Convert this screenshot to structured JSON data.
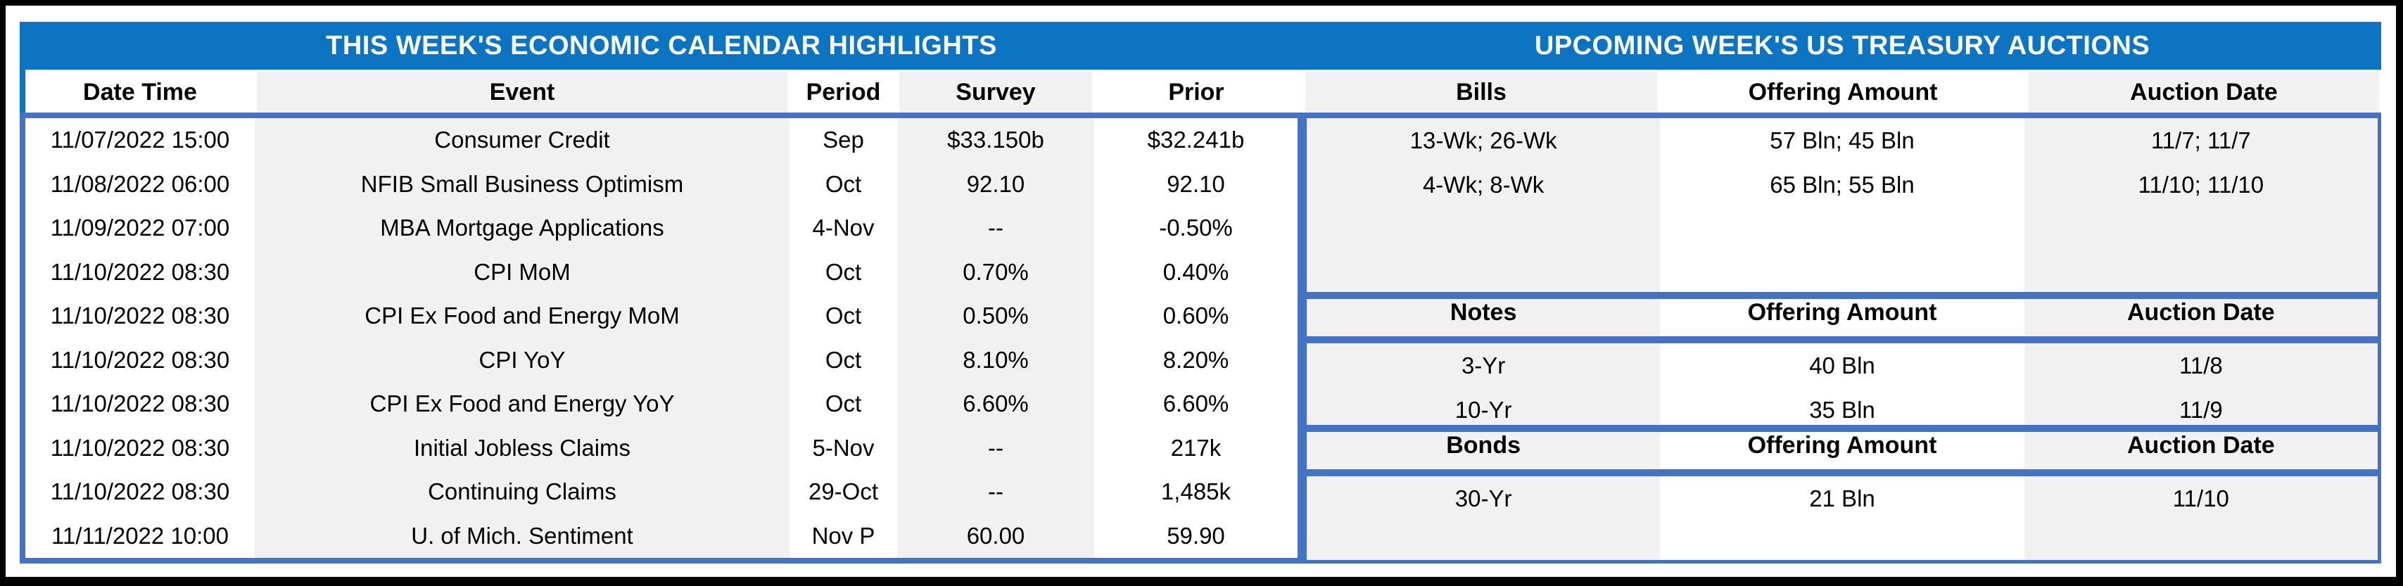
{
  "left_table": {
    "title": "THIS WEEK'S ECONOMIC CALENDAR HIGHLIGHTS",
    "columns": [
      "Date Time",
      "Event",
      "Period",
      "Survey",
      "Prior"
    ],
    "rows": [
      [
        "11/07/2022 15:00",
        "Consumer Credit",
        "Sep",
        "$33.150b",
        "$32.241b"
      ],
      [
        "11/08/2022 06:00",
        "NFIB Small Business Optimism",
        "Oct",
        "92.10",
        "92.10"
      ],
      [
        "11/09/2022 07:00",
        "MBA Mortgage Applications",
        "4-Nov",
        "--",
        "-0.50%"
      ],
      [
        "11/10/2022 08:30",
        "CPI MoM",
        "Oct",
        "0.70%",
        "0.40%"
      ],
      [
        "11/10/2022 08:30",
        "CPI Ex Food and Energy MoM",
        "Oct",
        "0.50%",
        "0.60%"
      ],
      [
        "11/10/2022 08:30",
        "CPI YoY",
        "Oct",
        "8.10%",
        "8.20%"
      ],
      [
        "11/10/2022 08:30",
        "CPI Ex Food and Energy YoY",
        "Oct",
        "6.60%",
        "6.60%"
      ],
      [
        "11/10/2022 08:30",
        "Initial Jobless Claims",
        "5-Nov",
        "--",
        "217k"
      ],
      [
        "11/10/2022 08:30",
        "Continuing Claims",
        "29-Oct",
        "--",
        "1,485k"
      ],
      [
        "11/11/2022 10:00",
        "U. of Mich. Sentiment",
        "Nov P",
        "60.00",
        "59.90"
      ]
    ]
  },
  "right_table": {
    "title": "UPCOMING WEEK'S US TREASURY AUCTIONS",
    "sections": [
      {
        "header": [
          "Bills",
          "Offering Amount",
          "Auction Date"
        ],
        "rows": [
          [
            "13-Wk; 26-Wk",
            "57 Bln; 45 Bln",
            "11/7; 11/7"
          ],
          [
            "4-Wk; 8-Wk",
            "65 Bln; 55 Bln",
            "11/10; 11/10"
          ]
        ]
      },
      {
        "header": [
          "Notes",
          "Offering Amount",
          "Auction Date"
        ],
        "rows": [
          [
            "3-Yr",
            "40 Bln",
            "11/8"
          ],
          [
            "10-Yr",
            "35 Bln",
            "11/9"
          ]
        ]
      },
      {
        "header": [
          "Bonds",
          "Offering Amount",
          "Auction Date"
        ],
        "rows": [
          [
            "30-Yr",
            "21 Bln",
            "11/10"
          ]
        ]
      }
    ]
  },
  "colors": {
    "title_band_blue": "#0B74C3",
    "border_blue": "#4472C4",
    "stripe_gray": "#F1F1F1",
    "frame_black": "#000000",
    "title_text": "#FFFFFF",
    "body_text": "#000000"
  }
}
